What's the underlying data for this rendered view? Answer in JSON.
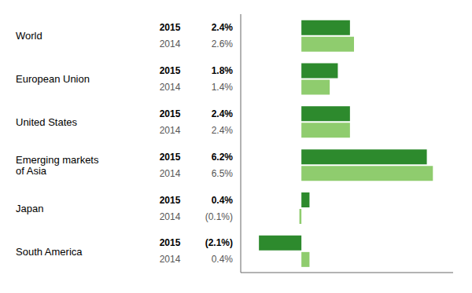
{
  "chart_data": {
    "type": "bar",
    "orientation": "horizontal",
    "categories": [
      "World",
      "European Union",
      "United States",
      "Emerging markets\nof Asia",
      "Japan",
      "South America"
    ],
    "series": [
      {
        "name": "2015",
        "color": "#2d8a2d",
        "values": [
          2.4,
          1.8,
          2.4,
          6.2,
          0.4,
          -2.1
        ],
        "value_labels": [
          "2.4%",
          "1.8%",
          "2.4%",
          "6.2%",
          "0.4%",
          "(2.1%)"
        ]
      },
      {
        "name": "2014",
        "color": "#8fcc6e",
        "values": [
          2.6,
          1.4,
          2.4,
          6.5,
          -0.1,
          0.4
        ],
        "value_labels": [
          "2.6%",
          "1.4%",
          "2.4%",
          "6.5%",
          "(0.1%)",
          "0.4%"
        ]
      }
    ],
    "xlim": [
      -3.0,
      7.5
    ],
    "data_labels": true,
    "tick_labels": "y",
    "grid": false
  }
}
